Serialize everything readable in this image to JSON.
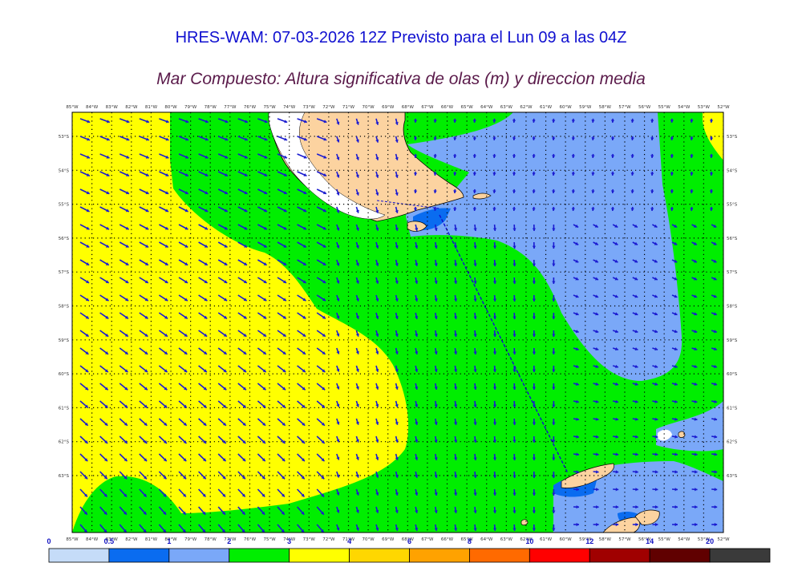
{
  "header": {
    "title": "HRES-WAM: 07-03-2026 12Z Previsto para el Lun 09 a las 04Z",
    "subtitle": "Mar Compuesto: Altura significativa de olas (m) y direccion media"
  },
  "map": {
    "lon_labels": [
      "85°W",
      "84°W",
      "83°W",
      "82°W",
      "81°W",
      "80°W",
      "79°W",
      "78°W",
      "77°W",
      "76°W",
      "75°W",
      "74°W",
      "73°W",
      "72°W",
      "71°W",
      "70°W",
      "69°W",
      "68°W",
      "67°W",
      "66°W",
      "65°W",
      "64°W",
      "63°W",
      "62°W",
      "61°W",
      "60°W",
      "59°W",
      "58°W",
      "57°W",
      "56°W",
      "55°W",
      "54°W",
      "53°W",
      "52°W"
    ],
    "lat_labels": [
      "53°S",
      "54°S",
      "55°S",
      "56°S",
      "57°S",
      "58°S",
      "59°S",
      "60°S",
      "61°S",
      "62°S",
      "63°S"
    ],
    "colors": {
      "yellow": "#ffff00",
      "green": "#00ee00",
      "lightblue": "#7aa8f8",
      "blue": "#0a6cf0",
      "land": "#fcd3a0",
      "arrow": "#1a1ad0"
    }
  },
  "colorbar": {
    "labels": [
      "0",
      "0.5",
      "1",
      "2",
      "3",
      "4",
      "6",
      "8",
      "10",
      "12",
      "14",
      "20"
    ],
    "colors": [
      "#c5dcf8",
      "#0a6cf0",
      "#7aa8f8",
      "#00ee00",
      "#ffff00",
      "#ffd700",
      "#ffa200",
      "#ff6a00",
      "#ff0000",
      "#a00000",
      "#600000",
      "#3a3a3a"
    ]
  }
}
